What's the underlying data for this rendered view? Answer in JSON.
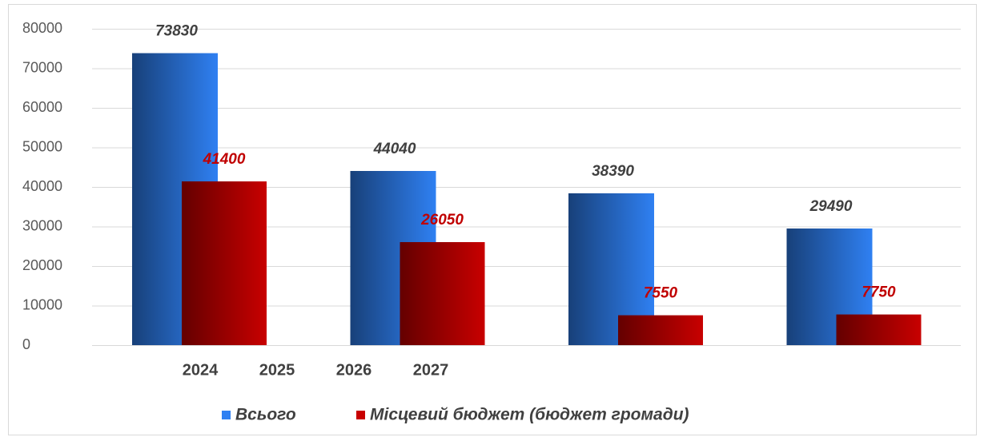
{
  "chart_data": {
    "type": "bar",
    "categories": [
      "2024",
      "2025",
      "2026",
      "2027"
    ],
    "series": [
      {
        "name": "Всього",
        "color": "#2f80f2",
        "values": [
          73830,
          44040,
          38390,
          29490
        ]
      },
      {
        "name": "Місцевий бюджет (бюджет громади)",
        "color": "#c80000",
        "values": [
          41400,
          26050,
          7550,
          7750
        ]
      }
    ],
    "ylim": [
      0,
      80000
    ],
    "yticks": [
      0,
      10000,
      20000,
      30000,
      40000,
      50000,
      60000,
      70000,
      80000
    ],
    "grid": true,
    "legend": "bottom"
  }
}
